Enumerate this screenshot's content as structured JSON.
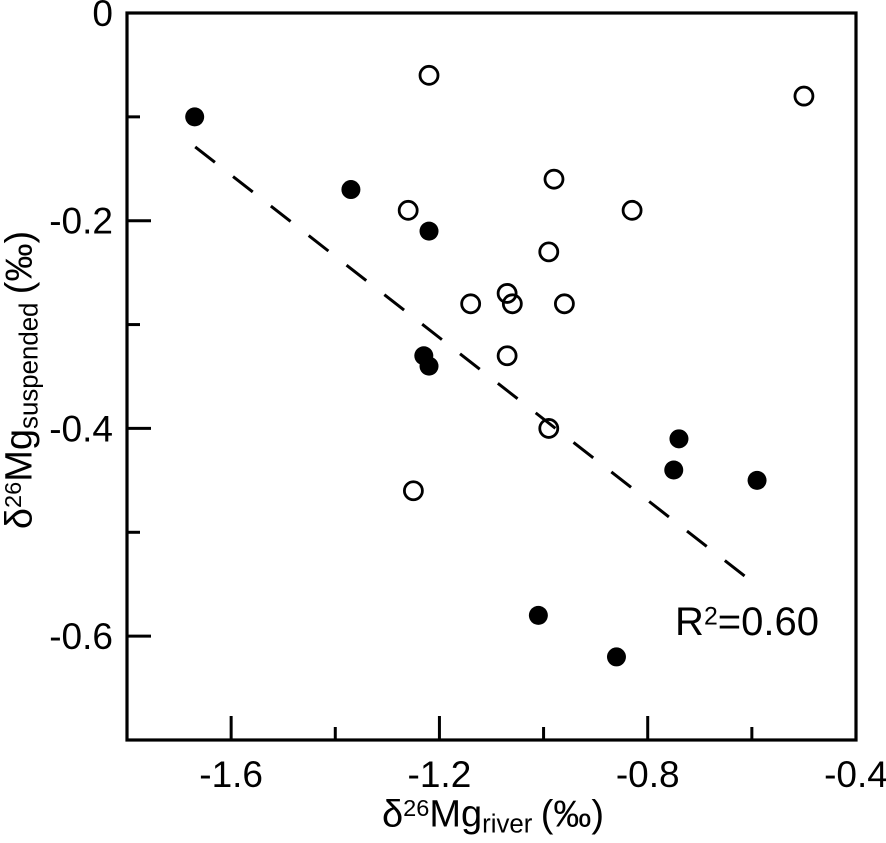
{
  "figure": {
    "background": "#ffffff",
    "foreground": "#000000"
  },
  "chart_data": {
    "type": "scatter",
    "title": "",
    "xlabel": {
      "delta": "δ",
      "mass_number": "26",
      "element": "Mg",
      "subscript": "river",
      "unit": "(‰)"
    },
    "ylabel": {
      "delta": "δ",
      "mass_number": "26",
      "element": "Mg",
      "subscript": "suspended",
      "unit": "(‰)"
    },
    "xlim": [
      -1.8,
      -0.4
    ],
    "ylim": [
      -0.7,
      0
    ],
    "grid": false,
    "legend": "none",
    "x_major_ticks": [
      -1.6,
      -1.2,
      -0.8,
      -0.4
    ],
    "x_minor_ticks": [
      -1.4,
      -1.0,
      -0.6
    ],
    "x_tick_labels": [
      "-1.6",
      "-1.2",
      "-0.8",
      "-0.4"
    ],
    "y_major_ticks": [
      0,
      -0.2,
      -0.4,
      -0.6
    ],
    "y_minor_ticks": [
      -0.1,
      -0.3,
      -0.5
    ],
    "y_tick_labels": [
      "0",
      "-0.2",
      "-0.4",
      "-0.6"
    ],
    "series": [
      {
        "name": "filled-circles",
        "marker": "filled-circle",
        "color": "#000000",
        "points": [
          [
            -1.67,
            -0.1
          ],
          [
            -1.37,
            -0.17
          ],
          [
            -1.22,
            -0.21
          ],
          [
            -1.23,
            -0.33
          ],
          [
            -1.22,
            -0.34
          ],
          [
            -0.74,
            -0.41
          ],
          [
            -0.75,
            -0.44
          ],
          [
            -0.59,
            -0.45
          ],
          [
            -1.01,
            -0.58
          ],
          [
            -0.86,
            -0.62
          ]
        ]
      },
      {
        "name": "open-circles",
        "marker": "open-circle",
        "color": "#000000",
        "points": [
          [
            -1.22,
            -0.06
          ],
          [
            -0.5,
            -0.08
          ],
          [
            -0.98,
            -0.16
          ],
          [
            -1.26,
            -0.19
          ],
          [
            -0.83,
            -0.19
          ],
          [
            -0.99,
            -0.23
          ],
          [
            -1.07,
            -0.27
          ],
          [
            -1.14,
            -0.28
          ],
          [
            -1.06,
            -0.28
          ],
          [
            -0.96,
            -0.28
          ],
          [
            -1.07,
            -0.33
          ],
          [
            -0.99,
            -0.4
          ],
          [
            -1.25,
            -0.46
          ]
        ]
      }
    ],
    "trendline": {
      "style": "dashed",
      "x1": -1.669,
      "y1": -0.129,
      "x2": -0.604,
      "y2": -0.546,
      "r_squared": 0.6
    },
    "annotation": {
      "base": "R",
      "sup": "2",
      "rest": "=0.60"
    }
  }
}
